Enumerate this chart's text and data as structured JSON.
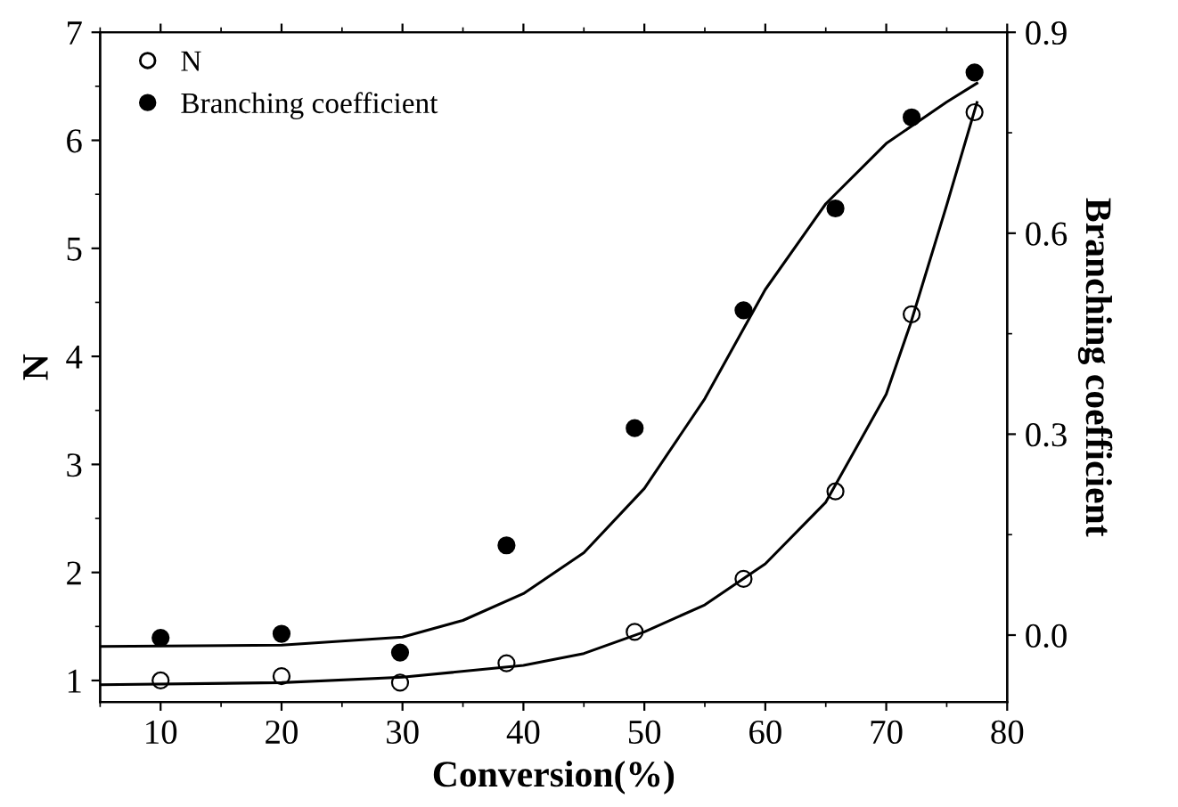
{
  "chart_data": {
    "type": "scatter",
    "xlabel": "Conversion(%)",
    "ylabel": "N",
    "y2label": "Branching coefficient",
    "xlim": [
      5,
      80
    ],
    "xticks": [
      10,
      20,
      30,
      40,
      50,
      60,
      70,
      80
    ],
    "ylim": [
      0.8,
      7
    ],
    "yticks": [
      1,
      2,
      3,
      4,
      5,
      6,
      7
    ],
    "y2lim": [
      -0.1,
      0.9
    ],
    "y2ticks": [
      {
        "value": 0,
        "label": "0.0"
      },
      0.3,
      0.6,
      0.9
    ],
    "legend": "top left",
    "grid": false,
    "series": [
      {
        "name": "N",
        "marker": "circle",
        "color": "#000000",
        "x": [
          10.0,
          20.0,
          29.8,
          38.6,
          49.2,
          58.2,
          65.8,
          72.1,
          77.3
        ],
        "values": [
          1.0,
          1.04,
          0.98,
          1.16,
          1.45,
          1.94,
          2.75,
          4.39,
          6.26
        ]
      },
      {
        "name": "Branching coefficient",
        "marker": "circle",
        "axis": "y2",
        "color": "#000000",
        "x": [
          10.0,
          20.0,
          29.8,
          38.6,
          49.2,
          58.2,
          65.8,
          72.1,
          77.3
        ],
        "values": [
          -0.004,
          0.002,
          -0.026,
          0.134,
          0.309,
          0.485,
          0.637,
          0.773,
          0.84
        ]
      },
      {
        "type": "line",
        "color": "#000000",
        "x": [
          5,
          20,
          30,
          40,
          45,
          50,
          55,
          60,
          65,
          70,
          72,
          75,
          77.5
        ],
        "values": [
          0.96,
          0.98,
          1.03,
          1.14,
          1.25,
          1.45,
          1.7,
          2.08,
          2.65,
          3.65,
          4.3,
          5.4,
          6.35
        ]
      },
      {
        "type": "line",
        "axis": "y2",
        "color": "#000000",
        "x": [
          5,
          20,
          30,
          35,
          40,
          45,
          50,
          55,
          60,
          65,
          70,
          75,
          77.5
        ],
        "values": [
          -0.017,
          -0.015,
          -0.003,
          0.022,
          0.062,
          0.123,
          0.219,
          0.353,
          0.516,
          0.644,
          0.734,
          0.796,
          0.824
        ]
      }
    ]
  }
}
